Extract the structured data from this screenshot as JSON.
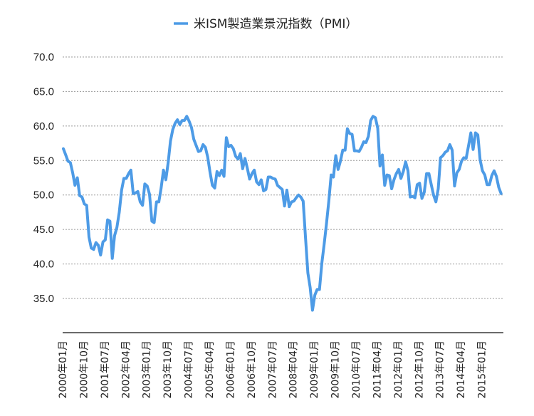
{
  "chart_data": {
    "type": "line",
    "title": "",
    "xlabel": "",
    "ylabel": "",
    "ylim": [
      30,
      70
    ],
    "yticks": [
      "35.0",
      "40.0",
      "45.0",
      "50.0",
      "55.0",
      "60.0",
      "65.0",
      "70.0"
    ],
    "grid": true,
    "legend_position": "top",
    "x_tick_labels": [
      "2000年01月",
      "2000年10月",
      "2001年07月",
      "2002年04月",
      "2003年01月",
      "2003年10月",
      "2004年07月",
      "2005年04月",
      "2006年01月",
      "2006年10月",
      "2007年07月",
      "2008年04月",
      "2009年01月",
      "2009年10月",
      "2010年07月",
      "2011年04月",
      "2012年01月",
      "2012年10月",
      "2013年07月",
      "2014年04月",
      "2015年01月"
    ],
    "x_start": "2000-01",
    "x_step": "1 month",
    "series": [
      {
        "name": "米ISM製造業景況指数（PMI）",
        "color": "#4d9be6",
        "values": [
          56.7,
          55.8,
          54.9,
          54.7,
          53.2,
          51.4,
          52.5,
          49.9,
          49.7,
          48.7,
          48.5,
          43.9,
          42.3,
          42.1,
          43.1,
          42.7,
          41.3,
          43.2,
          43.5,
          46.4,
          46.2,
          40.8,
          44.1,
          45.3,
          47.5,
          50.7,
          52.4,
          52.4,
          53.1,
          53.6,
          50.2,
          50.3,
          50.5,
          49.0,
          48.5,
          51.6,
          51.3,
          50.1,
          46.2,
          46.0,
          49.0,
          49.0,
          51.0,
          53.6,
          52.2,
          54.7,
          57.8,
          59.5,
          60.4,
          60.9,
          60.2,
          60.8,
          60.8,
          61.4,
          60.7,
          59.8,
          58.1,
          57.2,
          56.3,
          56.4,
          57.3,
          56.9,
          55.5,
          53.3,
          51.4,
          51.0,
          53.4,
          52.8,
          53.6,
          52.7,
          58.3,
          57.0,
          57.2,
          56.7,
          55.6,
          55.2,
          56.0,
          53.8,
          55.3,
          53.9,
          52.3,
          53.1,
          53.6,
          51.9,
          51.5,
          52.2,
          50.6,
          50.8,
          52.6,
          52.6,
          52.4,
          52.3,
          51.4,
          51.1,
          50.8,
          48.4,
          50.7,
          48.3,
          49.0,
          49.1,
          49.6,
          50.0,
          49.7,
          49.1,
          43.8,
          38.7,
          36.6,
          33.3,
          35.5,
          36.3,
          36.3,
          40.1,
          42.8,
          45.8,
          49.1,
          52.9,
          52.6,
          55.7,
          53.7,
          54.9,
          56.5,
          56.5,
          59.6,
          58.9,
          58.8,
          56.4,
          56.4,
          56.3,
          56.9,
          57.7,
          57.6,
          58.5,
          60.8,
          61.4,
          61.2,
          59.7,
          54.2,
          55.8,
          51.4,
          52.9,
          52.8,
          50.9,
          52.2,
          53.1,
          53.7,
          52.4,
          53.4,
          54.8,
          53.5,
          49.7,
          49.8,
          49.6,
          51.5,
          51.7,
          49.5,
          50.4,
          53.1,
          53.1,
          51.5,
          50.0,
          49.0,
          50.9,
          55.4,
          55.7,
          56.2,
          56.4,
          57.3,
          56.5,
          51.3,
          53.2,
          53.7,
          54.9,
          55.4,
          55.3,
          57.1,
          59.0,
          56.6,
          59.0,
          58.7,
          55.1,
          53.5,
          52.9,
          51.5,
          51.5,
          52.8,
          53.5,
          52.7,
          51.1,
          50.2
        ]
      }
    ]
  },
  "legend": {
    "label": "米ISM製造業景況指数（PMI）",
    "icon": "line-swatch-icon"
  }
}
